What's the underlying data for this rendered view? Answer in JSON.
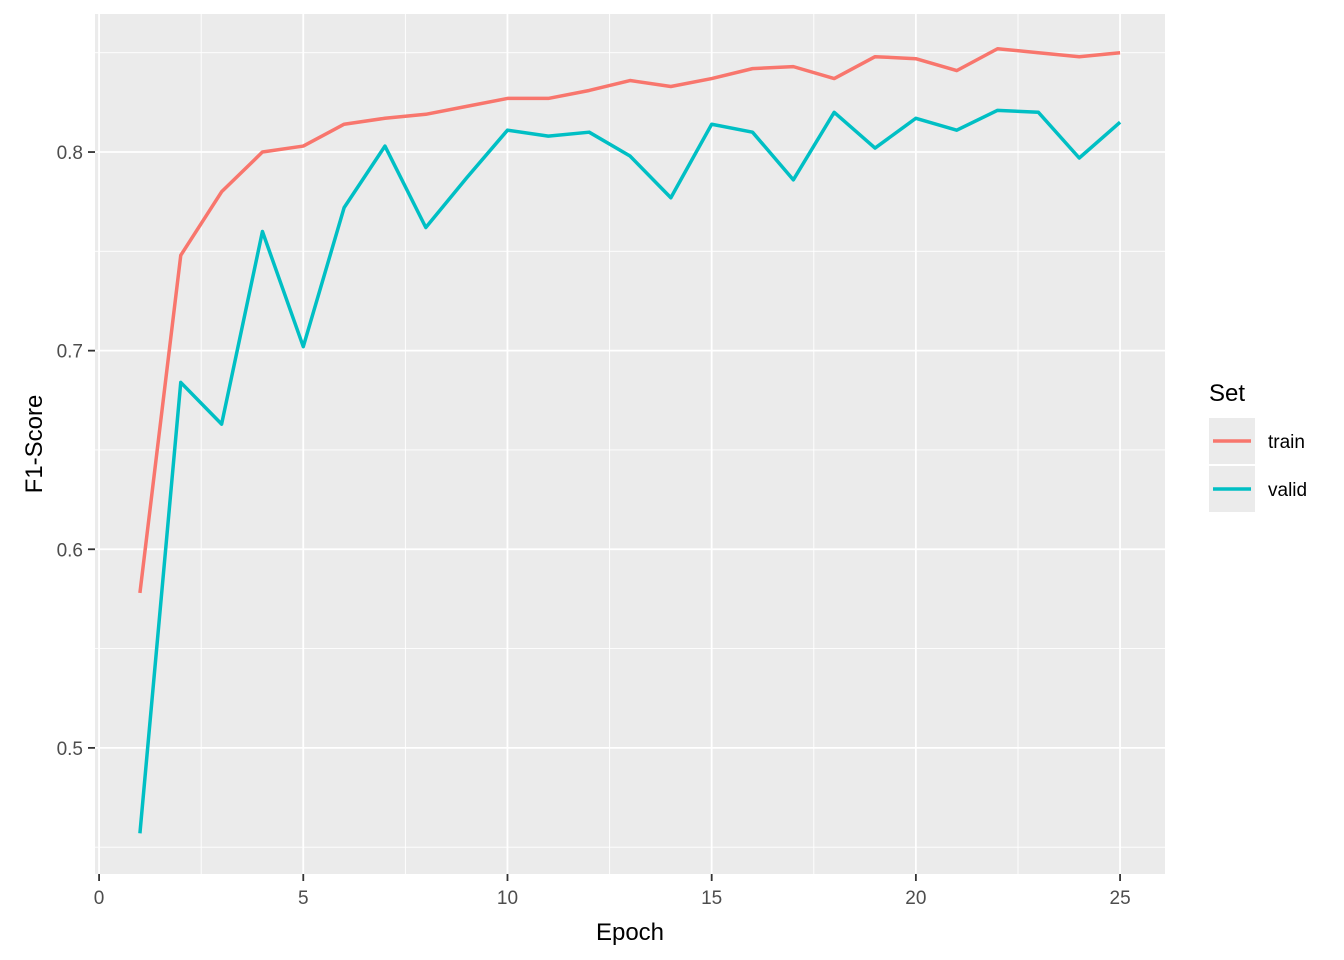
{
  "chart_data": {
    "type": "line",
    "xlabel": "Epoch",
    "ylabel": "F1-Score",
    "xlim": [
      -0.1,
      26.1
    ],
    "ylim": [
      0.4365,
      0.8695
    ],
    "x_ticks": [
      0,
      5,
      10,
      15,
      20,
      25
    ],
    "x_tick_labels": [
      "0",
      "5",
      "10",
      "15",
      "20",
      "25"
    ],
    "y_ticks": [
      0.5,
      0.6,
      0.7,
      0.8
    ],
    "y_tick_labels": [
      "0.5",
      "0.6",
      "0.7",
      "0.8"
    ],
    "grid": true,
    "legend": {
      "title": "Set",
      "position": "right"
    },
    "x": [
      1,
      2,
      3,
      4,
      5,
      6,
      7,
      8,
      9,
      10,
      11,
      12,
      13,
      14,
      15,
      16,
      17,
      18,
      19,
      20,
      21,
      22,
      23,
      24,
      25
    ],
    "series": [
      {
        "name": "train",
        "color": "#F8766D",
        "values": [
          0.578,
          0.748,
          0.78,
          0.8,
          0.803,
          0.814,
          0.817,
          0.819,
          0.823,
          0.827,
          0.827,
          0.831,
          0.836,
          0.833,
          0.837,
          0.842,
          0.843,
          0.837,
          0.848,
          0.847,
          0.841,
          0.852,
          0.85,
          0.848,
          0.85
        ]
      },
      {
        "name": "valid",
        "color": "#00BFC4",
        "values": [
          0.457,
          0.684,
          0.663,
          0.76,
          0.702,
          0.772,
          0.803,
          0.762,
          0.787,
          0.811,
          0.808,
          0.81,
          0.798,
          0.777,
          0.814,
          0.81,
          0.786,
          0.82,
          0.802,
          0.817,
          0.811,
          0.821,
          0.82,
          0.797,
          0.815
        ]
      }
    ]
  }
}
